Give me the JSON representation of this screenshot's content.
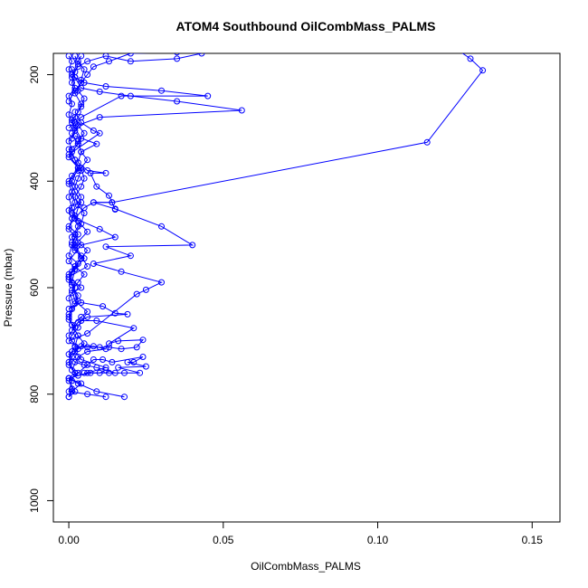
{
  "chart_data": {
    "type": "line",
    "title": "ATOM4 Southbound OilCombMass_PALMS",
    "xlabel": "OilCombMass_PALMS",
    "ylabel": "Pressure (mbar)",
    "xlim": [
      -0.005,
      0.159
    ],
    "ylim": [
      1040,
      160
    ],
    "y_axis_inverted": true,
    "x_ticks": [
      0.0,
      0.05,
      0.1,
      0.15
    ],
    "x_tick_labels": [
      "0.00",
      "0.05",
      "0.10",
      "0.15"
    ],
    "y_ticks": [
      200,
      400,
      600,
      800,
      1000
    ],
    "y_tick_labels": [
      "200",
      "400",
      "600",
      "800",
      "1000"
    ],
    "grid": false,
    "marker": "open-circle",
    "color": "#0000ff",
    "series": [
      {
        "points": [
          [
            0.0,
            805
          ],
          [
            0.001,
            790
          ],
          [
            0.0,
            770
          ],
          [
            0.002,
            760
          ],
          [
            0.0,
            745
          ],
          [
            0.001,
            730
          ],
          [
            0.003,
            715
          ],
          [
            0.001,
            700
          ],
          [
            0.0,
            690
          ],
          [
            0.002,
            675
          ],
          [
            0.0,
            660
          ],
          [
            0.001,
            640
          ],
          [
            0.0,
            620
          ],
          [
            0.002,
            600
          ],
          [
            0.0,
            585
          ],
          [
            0.001,
            570
          ],
          [
            0.003,
            555
          ],
          [
            0.0,
            540
          ],
          [
            0.001,
            520
          ],
          [
            0.002,
            505
          ],
          [
            0.0,
            490
          ],
          [
            0.001,
            470
          ],
          [
            0.0,
            455
          ],
          [
            0.002,
            440
          ],
          [
            0.001,
            420
          ],
          [
            0.0,
            405
          ],
          [
            0.001,
            390
          ],
          [
            0.003,
            375
          ],
          [
            0.0,
            355
          ],
          [
            0.001,
            340
          ],
          [
            0.0,
            325
          ],
          [
            0.002,
            305
          ],
          [
            0.001,
            290
          ],
          [
            0.0,
            275
          ],
          [
            0.001,
            255
          ],
          [
            0.0,
            240
          ],
          [
            0.002,
            225
          ],
          [
            0.001,
            205
          ],
          [
            0.0,
            190
          ],
          [
            0.001,
            175
          ],
          [
            0.0,
            165
          ]
        ]
      },
      {
        "points": [
          [
            0.012,
            805
          ],
          [
            0.006,
            800
          ],
          [
            0.0,
            795
          ],
          [
            0.001,
            775
          ],
          [
            0.002,
            760
          ],
          [
            0.0,
            740
          ],
          [
            0.001,
            720
          ],
          [
            0.002,
            710
          ],
          [
            0.003,
            690
          ],
          [
            0.001,
            670
          ],
          [
            0.0,
            650
          ],
          [
            0.002,
            630
          ],
          [
            0.003,
            615
          ],
          [
            0.001,
            595
          ],
          [
            0.0,
            575
          ],
          [
            0.002,
            560
          ],
          [
            0.004,
            545
          ],
          [
            0.002,
            525
          ],
          [
            0.001,
            505
          ],
          [
            0.003,
            485
          ],
          [
            0.002,
            465
          ],
          [
            0.001,
            450
          ],
          [
            0.0,
            430
          ],
          [
            0.002,
            410
          ],
          [
            0.003,
            395
          ],
          [
            0.004,
            380
          ],
          [
            0.002,
            360
          ],
          [
            0.001,
            345
          ],
          [
            0.003,
            330
          ],
          [
            0.004,
            320
          ],
          [
            0.002,
            300
          ],
          [
            0.001,
            285
          ],
          [
            0.003,
            270
          ],
          [
            0.004,
            255
          ],
          [
            0.002,
            235
          ],
          [
            0.001,
            215
          ],
          [
            0.002,
            195
          ],
          [
            0.003,
            180
          ],
          [
            0.002,
            165
          ]
        ]
      },
      {
        "points": [
          [
            0.018,
            805
          ],
          [
            0.009,
            795
          ],
          [
            0.003,
            780
          ],
          [
            0.0,
            770
          ],
          [
            0.006,
            760
          ],
          [
            0.012,
            750
          ],
          [
            0.004,
            735
          ],
          [
            0.002,
            720
          ],
          [
            0.005,
            705
          ],
          [
            0.003,
            690
          ],
          [
            0.001,
            670
          ],
          [
            0.004,
            655
          ],
          [
            0.006,
            645
          ],
          [
            0.002,
            625
          ],
          [
            0.001,
            605
          ],
          [
            0.003,
            590
          ],
          [
            0.005,
            575
          ],
          [
            0.002,
            560
          ],
          [
            0.004,
            545
          ],
          [
            0.006,
            530
          ],
          [
            0.003,
            515
          ],
          [
            0.002,
            500
          ],
          [
            0.004,
            480
          ],
          [
            0.005,
            460
          ],
          [
            0.003,
            445
          ],
          [
            0.002,
            430
          ],
          [
            0.004,
            410
          ],
          [
            0.005,
            395
          ],
          [
            0.004,
            375
          ],
          [
            0.006,
            360
          ],
          [
            0.004,
            345
          ],
          [
            0.003,
            325
          ],
          [
            0.005,
            310
          ],
          [
            0.003,
            295
          ],
          [
            0.002,
            280
          ],
          [
            0.004,
            260
          ],
          [
            0.005,
            245
          ],
          [
            0.003,
            230
          ],
          [
            0.004,
            210
          ],
          [
            0.005,
            190
          ],
          [
            0.003,
            175
          ],
          [
            0.004,
            165
          ]
        ]
      },
      {
        "points": [
          [
            0.005,
            760
          ],
          [
            0.013,
            760
          ],
          [
            0.018,
            760
          ],
          [
            0.023,
            760
          ],
          [
            0.016,
            750
          ],
          [
            0.025,
            748
          ],
          [
            0.019,
            740
          ],
          [
            0.021,
            740
          ],
          [
            0.024,
            730
          ],
          [
            0.014,
            740
          ],
          [
            0.011,
            735
          ],
          [
            0.008,
            735
          ],
          [
            0.006,
            745
          ],
          [
            0.003,
            760
          ],
          [
            0.0,
            775
          ],
          [
            0.002,
            795
          ],
          [
            0.0,
            805
          ]
        ]
      },
      {
        "points": [
          [
            0.002,
            712
          ],
          [
            0.006,
            712
          ],
          [
            0.01,
            712
          ],
          [
            0.013,
            712
          ],
          [
            0.017,
            715
          ],
          [
            0.022,
            712
          ],
          [
            0.024,
            698
          ],
          [
            0.016,
            700
          ],
          [
            0.013,
            705
          ],
          [
            0.021,
            676
          ],
          [
            0.009,
            662
          ],
          [
            0.004,
            662
          ],
          [
            0.003,
            675
          ],
          [
            0.001,
            690
          ]
        ]
      },
      {
        "points": [
          [
            0.001,
            610
          ],
          [
            0.004,
            600
          ],
          [
            0.0,
            580
          ],
          [
            0.002,
            565
          ],
          [
            0.005,
            545
          ],
          [
            0.002,
            530
          ],
          [
            0.001,
            515
          ],
          [
            0.003,
            500
          ],
          [
            0.0,
            485
          ],
          [
            0.002,
            470
          ],
          [
            0.005,
            450
          ],
          [
            0.008,
            440
          ],
          [
            0.014,
            440
          ],
          [
            0.015,
            453
          ],
          [
            0.013,
            427
          ],
          [
            0.009,
            410
          ],
          [
            0.007,
            385
          ],
          [
            0.012,
            385
          ],
          [
            0.006,
            380
          ],
          [
            0.003,
            365
          ],
          [
            0.004,
            345
          ],
          [
            0.009,
            330
          ],
          [
            0.002,
            315
          ]
        ]
      },
      {
        "points": [
          [
            0.0,
            640
          ],
          [
            0.004,
            628
          ],
          [
            0.011,
            635
          ],
          [
            0.015,
            648
          ],
          [
            0.019,
            650
          ],
          [
            0.006,
            655
          ],
          [
            0.003,
            665
          ],
          [
            0.001,
            680
          ]
        ]
      },
      {
        "points": [
          [
            0.0,
            700
          ],
          [
            0.006,
            686
          ],
          [
            0.022,
            612
          ],
          [
            0.025,
            604
          ],
          [
            0.03,
            590
          ],
          [
            0.017,
            570
          ],
          [
            0.008,
            555
          ],
          [
            0.02,
            540
          ],
          [
            0.012,
            523
          ],
          [
            0.04,
            520
          ],
          [
            0.03,
            485
          ],
          [
            0.015,
            452
          ],
          [
            0.008,
            440
          ],
          [
            0.014,
            440
          ],
          [
            0.116,
            327
          ],
          [
            0.134,
            192
          ],
          [
            0.13,
            170
          ],
          [
            0.125,
            150
          ]
        ]
      },
      {
        "points": [
          [
            0.0,
            655
          ],
          [
            0.003,
            625
          ],
          [
            0.001,
            590
          ],
          [
            0.002,
            565
          ],
          [
            0.0,
            550
          ],
          [
            0.004,
            520
          ],
          [
            0.015,
            505
          ],
          [
            0.01,
            490
          ],
          [
            0.002,
            470
          ],
          [
            0.004,
            430
          ],
          [
            0.001,
            400
          ],
          [
            0.003,
            375
          ],
          [
            0.0,
            350
          ],
          [
            0.01,
            310
          ],
          [
            0.008,
            305
          ],
          [
            0.004,
            290
          ],
          [
            0.002,
            270
          ]
        ]
      },
      {
        "points": [
          [
            0.0,
            300
          ],
          [
            0.002,
            290
          ],
          [
            0.004,
            280
          ],
          [
            0.017,
            240
          ],
          [
            0.045,
            240
          ],
          [
            0.03,
            230
          ],
          [
            0.012,
            222
          ],
          [
            0.005,
            215
          ],
          [
            0.002,
            205
          ],
          [
            0.001,
            190
          ]
        ]
      },
      {
        "points": [
          [
            0.001,
            320
          ],
          [
            0.003,
            295
          ],
          [
            0.01,
            280
          ],
          [
            0.056,
            267
          ],
          [
            0.035,
            250
          ],
          [
            0.02,
            240
          ],
          [
            0.01,
            232
          ],
          [
            0.004,
            225
          ],
          [
            0.002,
            205
          ]
        ]
      },
      {
        "points": [
          [
            0.0,
            250
          ],
          [
            0.002,
            230
          ],
          [
            0.004,
            215
          ],
          [
            0.006,
            200
          ],
          [
            0.008,
            185
          ],
          [
            0.013,
            175
          ],
          [
            0.02,
            160
          ],
          [
            0.035,
            158
          ],
          [
            0.043,
            160
          ],
          [
            0.035,
            170
          ],
          [
            0.02,
            175
          ],
          [
            0.012,
            165
          ],
          [
            0.006,
            175
          ],
          [
            0.003,
            185
          ],
          [
            0.001,
            200
          ]
        ]
      },
      {
        "points": [
          [
            0.0,
            580
          ],
          [
            0.006,
            560
          ],
          [
            0.004,
            540
          ],
          [
            0.002,
            520
          ],
          [
            0.006,
            495
          ],
          [
            0.003,
            475
          ],
          [
            0.001,
            460
          ],
          [
            0.004,
            440
          ],
          [
            0.002,
            420
          ],
          [
            0.0,
            400
          ],
          [
            0.003,
            380
          ],
          [
            0.002,
            360
          ],
          [
            0.0,
            340
          ],
          [
            0.003,
            330
          ],
          [
            0.001,
            310
          ]
        ]
      },
      {
        "points": [
          [
            0.001,
            795
          ],
          [
            0.004,
            780
          ],
          [
            0.0,
            770
          ],
          [
            0.003,
            765
          ],
          [
            0.007,
            760
          ],
          [
            0.01,
            760
          ],
          [
            0.012,
            755
          ],
          [
            0.015,
            760
          ],
          [
            0.009,
            750
          ],
          [
            0.005,
            745
          ],
          [
            0.002,
            740
          ],
          [
            0.0,
            725
          ],
          [
            0.004,
            710
          ],
          [
            0.008,
            710
          ],
          [
            0.012,
            715
          ],
          [
            0.006,
            720
          ],
          [
            0.003,
            730
          ],
          [
            0.001,
            755
          ]
        ]
      }
    ]
  }
}
